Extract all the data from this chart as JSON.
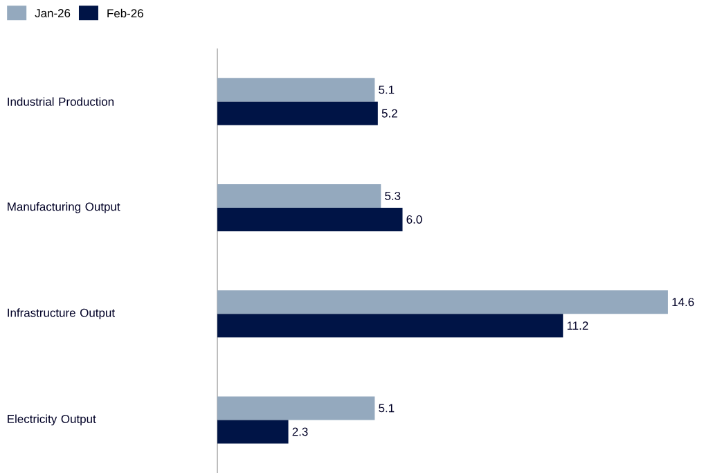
{
  "chart_data": {
    "type": "bar",
    "orientation": "horizontal",
    "categories": [
      "Industrial Production",
      "Manufacturing Output",
      "Infrastructure Output",
      "Electricity Output"
    ],
    "series": [
      {
        "name": "Jan-26",
        "color": "#94a9be",
        "values": [
          5.1,
          5.3,
          14.6,
          5.1
        ],
        "value_labels": [
          "5.1",
          "5.3",
          "14.6",
          "5.1"
        ]
      },
      {
        "name": "Feb-26",
        "color": "#001446",
        "values": [
          5.2,
          6.0,
          11.2,
          2.3
        ],
        "value_labels": [
          "5.2",
          "6.0",
          "11.2",
          "2.3"
        ]
      }
    ],
    "legend": "top left"
  }
}
